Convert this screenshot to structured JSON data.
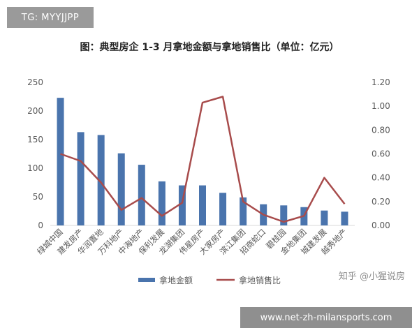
{
  "overlay": {
    "tg_label": "TG: MYYJJPP",
    "url_label": "www.net-zh-milansports.com",
    "watermark": "知乎 @小猩说房"
  },
  "colors": {
    "bar": "#4a74ad",
    "line": "#a84c4c",
    "grid": "#d9d9d9",
    "axis_text": "#595959",
    "title": "#222222"
  },
  "chart_data": {
    "type": "bar",
    "title": "图：典型房企 1-3 月拿地金额与拿地销售比（单位：亿元）",
    "categories": [
      "绿城中国",
      "建发房产",
      "华润置地",
      "万科地产",
      "中海地产",
      "保利发展",
      "龙湖集团",
      "伟星房产",
      "大家房产",
      "滨江集团",
      "招商蛇口",
      "碧桂园",
      "金地集团",
      "城建发展",
      "越秀地产"
    ],
    "series": [
      {
        "name": "拿地金额",
        "type": "bar",
        "axis": "left",
        "values": [
          223,
          163,
          158,
          126,
          106,
          77,
          70,
          70,
          57,
          49,
          37,
          35,
          32,
          26,
          24
        ]
      },
      {
        "name": "拿地销售比",
        "type": "line",
        "axis": "right",
        "values": [
          0.6,
          0.54,
          0.36,
          0.13,
          0.23,
          0.08,
          0.19,
          1.03,
          1.08,
          0.2,
          0.09,
          0.03,
          0.08,
          0.4,
          0.18
        ]
      }
    ],
    "y_left": {
      "min": 0,
      "max": 250,
      "ticks": [
        "0",
        "50",
        "100",
        "150",
        "200",
        "250"
      ]
    },
    "y_right": {
      "min": 0,
      "max": 1.2,
      "ticks": [
        "0.00",
        "0.20",
        "0.40",
        "0.60",
        "0.80",
        "1.00",
        "1.20"
      ]
    },
    "grid": false,
    "legend_position": "bottom"
  }
}
